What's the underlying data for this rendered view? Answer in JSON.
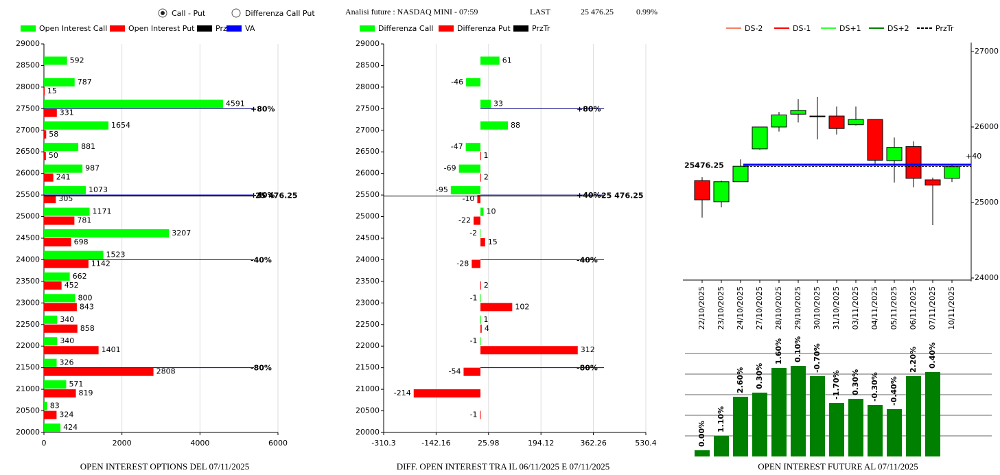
{
  "header": {
    "options": [
      "Call - Put",
      "Differenza Call Put"
    ],
    "selected": 0,
    "title": "Analisi future : NASDAQ MINI - 07:59",
    "last_label": "LAST",
    "last": "25 476.25",
    "change": "0.99%"
  },
  "chart_data": [
    {
      "type": "hbar",
      "title": "OPEN INTEREST OPTIONS DEL 07/11/2025",
      "y": [
        28500,
        28000,
        27500,
        27000,
        26500,
        26000,
        25500,
        25000,
        24500,
        24000,
        23500,
        23000,
        22500,
        22000,
        21500,
        21000,
        20500,
        20000
      ],
      "series": [
        {
          "name": "Open Interest Call",
          "color": "#00ff00",
          "values": [
            592,
            787,
            4591,
            1654,
            881,
            987,
            1073,
            1171,
            3207,
            1523,
            662,
            800,
            340,
            340,
            326,
            571,
            83,
            424
          ]
        },
        {
          "name": "Open Interest Put",
          "color": "#ff0000",
          "values": [
            null,
            15,
            331,
            58,
            50,
            241,
            305,
            781,
            698,
            1142,
            452,
            843,
            858,
            1401,
            2808,
            819,
            324,
            null
          ]
        }
      ],
      "legend_extra": [
        {
          "name": "PrzTr",
          "color": "#000000"
        },
        {
          "name": "VA",
          "color": "#0000ff"
        }
      ],
      "xlim": [
        0,
        6000
      ],
      "xticks": [
        0,
        2000,
        4000,
        6000
      ],
      "ylim": [
        20000,
        29000
      ],
      "yticks": [
        20000,
        20500,
        21000,
        21500,
        22000,
        22500,
        23000,
        23500,
        24000,
        24500,
        25000,
        25500,
        26000,
        26500,
        27000,
        27500,
        28000,
        28500,
        29000
      ],
      "grid": true,
      "levels": [
        {
          "value": 27500,
          "label": "+80%"
        },
        {
          "value": 25500,
          "label": "+40%"
        },
        {
          "value": 24000,
          "label": "-40%"
        },
        {
          "value": 21500,
          "label": "-80%"
        }
      ],
      "price": {
        "value": 25476.25,
        "label": "25 476.25"
      }
    },
    {
      "type": "hbar",
      "title": "DIFF. OPEN INTEREST TRA IL 06/11/2025 E 07/11/2025",
      "y": [
        28500,
        28000,
        27500,
        27000,
        26500,
        26000,
        25500,
        25000,
        24500,
        24000,
        23500,
        23000,
        22500,
        22000,
        21500,
        21000,
        20500,
        20000
      ],
      "series": [
        {
          "name": "Differenza Call",
          "color": "#00ff00",
          "values": [
            61,
            -46,
            33,
            88,
            -47,
            -69,
            -95,
            10,
            -2,
            null,
            null,
            -1,
            1,
            -1,
            null,
            null,
            null,
            null
          ]
        },
        {
          "name": "Differenza Put",
          "color": "#ff0000",
          "values": [
            null,
            null,
            null,
            null,
            1,
            2,
            -10,
            -22,
            15,
            -28,
            2,
            102,
            4,
            312,
            -54,
            -214,
            -1,
            null
          ]
        }
      ],
      "legend_extra": [
        {
          "name": "PrzTr",
          "color": "#000000"
        }
      ],
      "xlim": [
        -310.3,
        530.4
      ],
      "xticks": [
        -310.3,
        -142.16,
        25.98,
        194.12,
        362.26,
        530.4
      ],
      "ylim": [
        20000,
        29000
      ],
      "yticks": [
        20000,
        20500,
        21000,
        21500,
        22000,
        22500,
        23000,
        23500,
        24000,
        24500,
        25000,
        25500,
        26000,
        26500,
        27000,
        27500,
        28000,
        28500,
        29000
      ],
      "grid": true,
      "levels": [
        {
          "value": 27500,
          "label": "+80%"
        },
        {
          "value": 25500,
          "label": "+40%"
        },
        {
          "value": 24000,
          "label": "-40%"
        },
        {
          "value": 21500,
          "label": "-80%"
        }
      ],
      "price": {
        "value": 25476.25,
        "label": "25 476.25"
      }
    },
    {
      "type": "candlestick",
      "categories": [
        "22/10/2025",
        "23/10/2025",
        "24/10/2025",
        "27/10/2025",
        "28/10/2025",
        "29/10/2025",
        "30/10/2025",
        "31/10/2025",
        "03/11/2025",
        "04/11/2025",
        "05/11/2025",
        "06/11/2025",
        "07/11/2025",
        "10/11/2025"
      ],
      "open": [
        25290,
        25010,
        25275,
        25710,
        26000,
        26170,
        26145,
        26145,
        26030,
        26100,
        25555,
        25740,
        25300,
        25320
      ],
      "high": [
        25335,
        25290,
        25570,
        26000,
        26200,
        26370,
        26400,
        26270,
        26270,
        26100,
        25860,
        25810,
        25330,
        25490
      ],
      "low": [
        24800,
        24935,
        25275,
        25700,
        25940,
        26060,
        25835,
        25900,
        26020,
        25510,
        25265,
        25200,
        24700,
        25270
      ],
      "close": [
        25035,
        25275,
        25480,
        26000,
        26160,
        26220,
        26145,
        25980,
        26100,
        25560,
        25730,
        25320,
        25230,
        25475
      ],
      "up_color": "#00ff00",
      "down_color": "#ff0000",
      "legend_extra": [
        {
          "name": "DS-2",
          "color": "#f08060"
        },
        {
          "name": "DS-1",
          "color": "#ff0000"
        },
        {
          "name": "DS+1",
          "color": "#33ff33"
        },
        {
          "name": "DS+2",
          "color": "#008000"
        },
        {
          "name": "PrzTr",
          "color": "#000000",
          "dashed": true
        }
      ],
      "ylim": [
        24000,
        27000
      ],
      "yticks": [
        24000,
        25000,
        26000,
        27000
      ],
      "levels": [
        {
          "value": 25500,
          "label": "+40"
        }
      ],
      "price": {
        "value": 25476.25,
        "label": "25476.25"
      }
    },
    {
      "type": "bar",
      "title": "OPEN INTEREST FUTURE AL 07/11/2025",
      "color": "#008000",
      "values": [
        0.3,
        1.0,
        2.9,
        3.1,
        4.3,
        4.4,
        3.9,
        2.6,
        2.8,
        2.5,
        2.3,
        3.9,
        4.1
      ],
      "value_labels": [
        "0.00%",
        "1.10%",
        "2.60%",
        "0.30%",
        "1.60%",
        "0.10%",
        "-0.70%",
        "-1.70%",
        "0.30%",
        "-0.30%",
        "-0.40%",
        "2.20%",
        "0.40%"
      ],
      "ylim": [
        0,
        5
      ],
      "grid_lines": [
        1,
        2,
        3,
        4,
        5
      ]
    }
  ]
}
